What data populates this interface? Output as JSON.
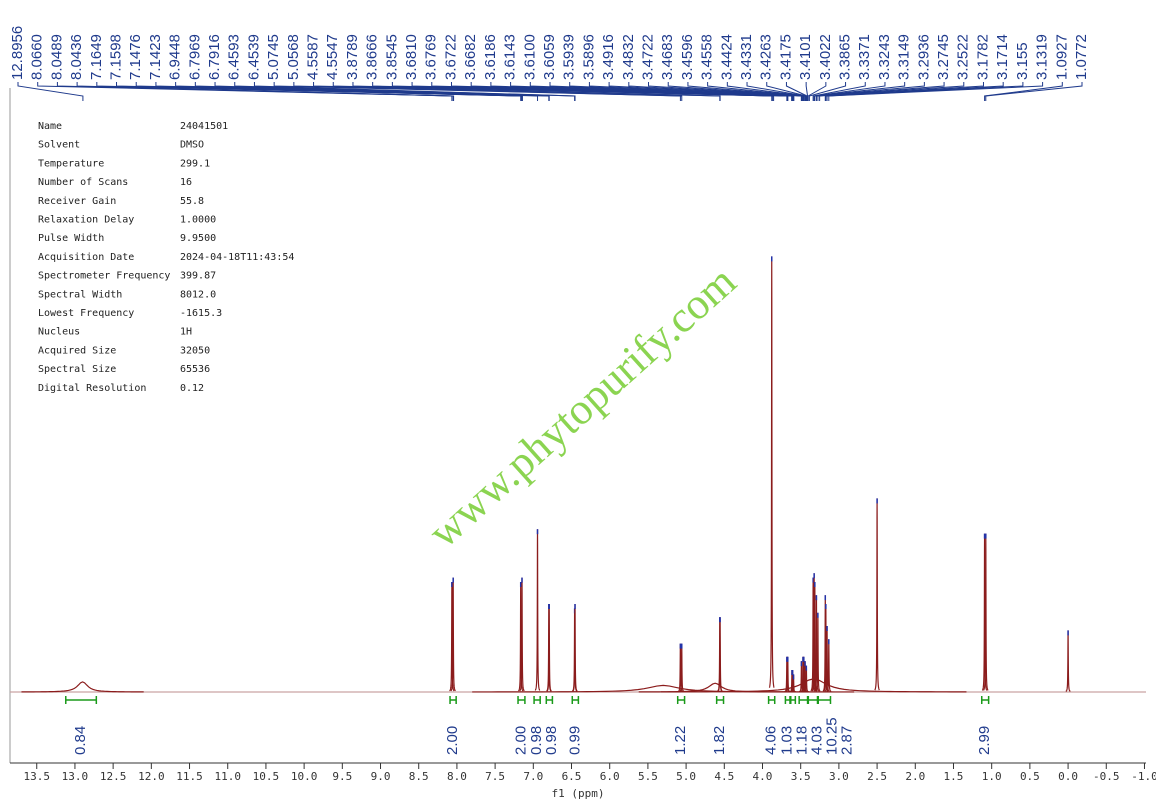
{
  "chart_data": {
    "type": "nmr",
    "watermark": "www.phytopurify.com",
    "x_label": "f1 (ppm)",
    "xlim": [
      13.85,
      -1.02
    ],
    "ylim": [
      0,
      100
    ],
    "xticks": [
      13.5,
      {
        "value": 13,
        "label": "13.0"
      },
      12.5,
      {
        "value": 12,
        "label": "12.0"
      },
      11.5,
      {
        "value": 11,
        "label": "11.0"
      },
      10.5,
      {
        "value": 10,
        "label": "10.0"
      },
      9.5,
      {
        "value": 9,
        "label": "9.0"
      },
      8.5,
      {
        "value": 8,
        "label": "8.0"
      },
      7.5,
      {
        "value": 7,
        "label": "7.0"
      },
      6.5,
      {
        "value": 6,
        "label": "6.0"
      },
      5.5,
      {
        "value": 5,
        "label": "5.0"
      },
      4.5,
      {
        "value": 4,
        "label": "4.0"
      },
      3.5,
      {
        "value": 3,
        "label": "3.0"
      },
      2.5,
      {
        "value": 2,
        "label": "2.0"
      },
      1.5,
      {
        "value": 1,
        "label": "1.0"
      },
      0.5,
      {
        "value": 0,
        "label": "0.0"
      },
      -0.5,
      {
        "value": -1,
        "label": "-1.0"
      }
    ],
    "parameters": [
      [
        "Name",
        "24041501"
      ],
      [
        "Solvent",
        "DMSO"
      ],
      [
        "Temperature",
        "299.1"
      ],
      [
        "Number of Scans",
        "16"
      ],
      [
        "Receiver Gain",
        "55.8"
      ],
      [
        "Relaxation Delay",
        "1.0000"
      ],
      [
        "Pulse Width",
        "9.9500"
      ],
      [
        "Acquisition Date",
        "2024-04-18T11:43:54"
      ],
      [
        "Spectrometer Frequency",
        "399.87"
      ],
      [
        "Spectral Width",
        "8012.0"
      ],
      [
        "Lowest Frequency",
        "-1615.3"
      ],
      [
        "Nucleus",
        "1H"
      ],
      [
        "Acquired Size",
        "32050"
      ],
      [
        "Spectral Size",
        "65536"
      ],
      [
        "Digital Resolution",
        "0.12"
      ]
    ],
    "peak_labels": [
      12.8956,
      {
        "value": 8.066,
        "label": "8.0660"
      },
      8.0489,
      8.0436,
      7.1649,
      7.1598,
      7.1476,
      7.1423,
      6.9448,
      6.7969,
      6.7916,
      6.4593,
      6.4539,
      5.0745,
      5.0568,
      4.5587,
      4.5547,
      3.8789,
      3.8666,
      3.8545,
      {
        "value": 3.681,
        "label": "3.6810"
      },
      3.6769,
      3.6722,
      3.6682,
      3.6186,
      3.6143,
      {
        "value": 3.61,
        "label": "3.6100"
      },
      3.6059,
      3.5939,
      3.5896,
      3.4916,
      3.4832,
      3.4722,
      3.4683,
      3.4596,
      3.4558,
      3.4424,
      3.4331,
      3.4263,
      3.4175,
      3.4101,
      3.4022,
      3.3865,
      3.3371,
      3.3243,
      3.3149,
      3.2936,
      3.2745,
      3.2522,
      3.1782,
      3.1714,
      3.155,
      3.1319,
      1.0927,
      1.0772
    ],
    "peaks": {
      "ppm": [
        12.9,
        5.3,
        4.62,
        3.33,
        8.066,
        8.049,
        7.165,
        7.148,
        6.945,
        6.797,
        6.792,
        6.459,
        6.454,
        5.075,
        5.057,
        4.559,
        4.555,
        3.879,
        3.681,
        3.669,
        3.614,
        3.606,
        3.594,
        3.49,
        3.47,
        3.459,
        3.443,
        3.426,
        3.337,
        3.324,
        3.315,
        3.294,
        3.275,
        3.178,
        3.171,
        3.155,
        3.132,
        2.5,
        1.093,
        1.077,
        0
      ],
      "height": [
        2.3,
        1.5,
        2,
        3,
        25,
        26,
        25,
        26,
        37,
        20,
        20,
        19,
        20,
        11,
        11,
        17,
        17,
        99,
        8,
        8,
        5,
        5,
        4,
        7,
        8,
        8,
        7,
        6,
        26,
        27,
        25,
        22,
        18,
        22,
        20,
        15,
        12,
        44,
        36,
        36,
        14
      ],
      "width": [
        0.08,
        0.25,
        0.1,
        0.2,
        0.003,
        0.003,
        0.003,
        0.003,
        0.003,
        0.003,
        0.003,
        0.003,
        0.003,
        0.003,
        0.003,
        0.003,
        0.003,
        0.003,
        0.003,
        0.003,
        0.003,
        0.003,
        0.003,
        0.003,
        0.003,
        0.003,
        0.003,
        0.003,
        0.003,
        0.003,
        0.003,
        0.003,
        0.003,
        0.003,
        0.003,
        0.003,
        0.003,
        0.003,
        0.003,
        0.003,
        0.003
      ]
    },
    "integrals": [
      {
        "from": 13.12,
        "to": 12.72,
        "value": 0.84
      },
      {
        "from": 8.09,
        "to": 8.01,
        "value": {
          "value": 2,
          "label": "2.00"
        }
      },
      {
        "from": 7.2,
        "to": 7.11,
        "value": {
          "value": 2,
          "label": "2.00"
        }
      },
      {
        "from": 6.99,
        "to": 6.91,
        "value": 0.98
      },
      {
        "from": 6.83,
        "to": 6.75,
        "value": 0.98
      },
      {
        "from": 6.49,
        "to": 6.41,
        "value": 0.99
      },
      {
        "from": 5.11,
        "to": 5.02,
        "value": 1.22
      },
      {
        "from": 4.6,
        "to": 4.51,
        "value": 1.82
      },
      {
        "from": 3.92,
        "to": 3.84,
        "value": 4.06
      },
      {
        "from": 3.7,
        "to": 3.64,
        "value": 1.03
      },
      {
        "from": 3.63,
        "to": 3.57,
        "value": 1.18
      },
      {
        "from": 3.52,
        "to": 3.41,
        "value": 4.03
      },
      {
        "from": 3.4,
        "to": 3.28,
        "value": 10.25
      },
      {
        "from": 3.27,
        "to": 3.11,
        "value": 2.87
      },
      {
        "from": 1.13,
        "to": 1.04,
        "value": 2.99
      }
    ]
  }
}
